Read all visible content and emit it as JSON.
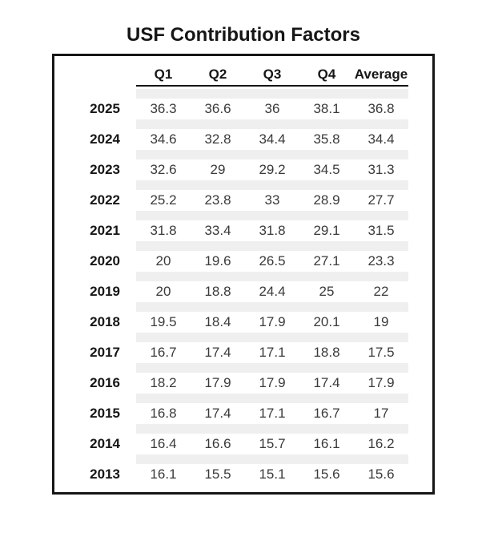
{
  "title": "USF Contribution Factors",
  "chart_data": {
    "type": "table",
    "title": "USF Contribution Factors",
    "columns": [
      "Q1",
      "Q2",
      "Q3",
      "Q4",
      "Average"
    ],
    "rows": [
      {
        "year": "2025",
        "values": [
          36.3,
          36.6,
          36,
          38.1,
          36.8
        ]
      },
      {
        "year": "2024",
        "values": [
          34.6,
          32.8,
          34.4,
          35.8,
          34.4
        ]
      },
      {
        "year": "2023",
        "values": [
          32.6,
          29,
          29.2,
          34.5,
          31.3
        ]
      },
      {
        "year": "2022",
        "values": [
          25.2,
          23.8,
          33,
          28.9,
          27.7
        ]
      },
      {
        "year": "2021",
        "values": [
          31.8,
          33.4,
          31.8,
          29.1,
          31.5
        ]
      },
      {
        "year": "2020",
        "values": [
          20,
          19.6,
          26.5,
          27.1,
          23.3
        ]
      },
      {
        "year": "2019",
        "values": [
          20,
          18.8,
          24.4,
          25,
          22
        ]
      },
      {
        "year": "2018",
        "values": [
          19.5,
          18.4,
          17.9,
          20.1,
          19
        ]
      },
      {
        "year": "2017",
        "values": [
          16.7,
          17.4,
          17.1,
          18.8,
          17.5
        ]
      },
      {
        "year": "2016",
        "values": [
          18.2,
          17.9,
          17.9,
          17.4,
          17.9
        ]
      },
      {
        "year": "2015",
        "values": [
          16.8,
          17.4,
          17.1,
          16.7,
          17
        ]
      },
      {
        "year": "2014",
        "values": [
          16.4,
          16.6,
          15.7,
          16.1,
          16.2
        ]
      },
      {
        "year": "2013",
        "values": [
          16.1,
          15.5,
          15.1,
          15.6,
          15.6
        ]
      }
    ],
    "layout": {
      "legend": "none",
      "grid": "off",
      "row_stripe_style": "light gray separator bands between rows spanning data columns only",
      "header_underline": true
    }
  },
  "colors": {
    "border": "#161616",
    "stripe": "#efefef",
    "header_text": "#161616",
    "value_text": "#3a3a3a",
    "background": "#ffffff"
  }
}
